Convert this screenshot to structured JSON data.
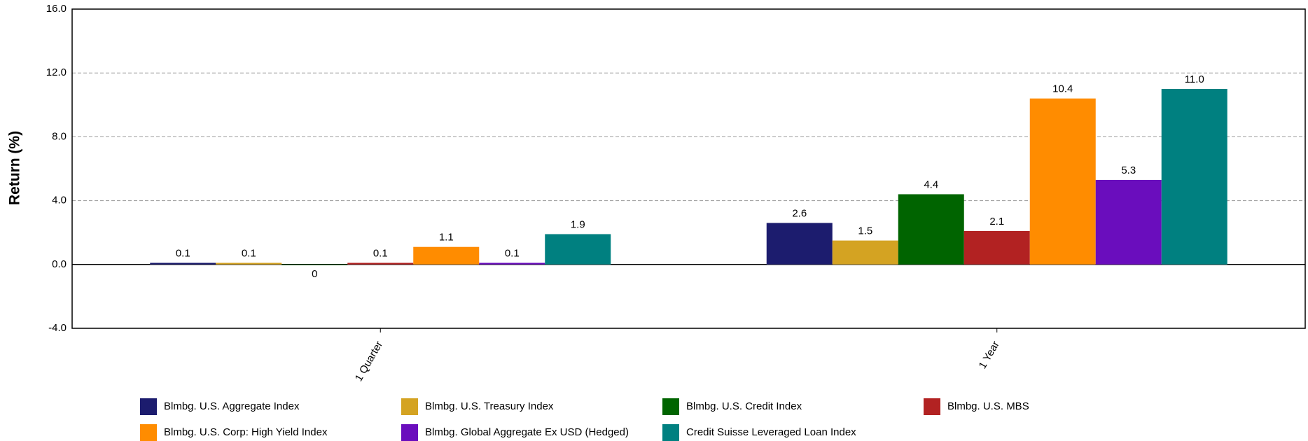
{
  "chart_data": {
    "type": "bar",
    "y_label": "Return (%)",
    "categories": [
      "1 Quarter",
      "1 Year"
    ],
    "series": [
      {
        "name": "Blmbg. U.S. Aggregate Index",
        "color": "#1c1c6e",
        "values": [
          0.1,
          2.6
        ]
      },
      {
        "name": "Blmbg. U.S. Treasury Index",
        "color": "#d4a322",
        "values": [
          0.1,
          1.5
        ]
      },
      {
        "name": "Blmbg. U.S. Credit Index",
        "color": "#006400",
        "values": [
          0.0,
          4.4
        ]
      },
      {
        "name": "Blmbg. U.S. MBS",
        "color": "#b22222",
        "values": [
          0.1,
          2.1
        ]
      },
      {
        "name": "Blmbg. U.S. Corp: High Yield Index",
        "color": "#ff8c00",
        "values": [
          1.1,
          10.4
        ]
      },
      {
        "name": "Blmbg. Global Aggregate Ex USD (Hedged)",
        "color": "#6a0dbd",
        "values": [
          0.1,
          5.3
        ]
      },
      {
        "name": "Credit Suisse Leveraged Loan Index",
        "color": "#008080",
        "values": [
          1.9,
          11.0
        ],
        "value_labels": [
          "1.9",
          "11.0"
        ]
      }
    ],
    "ylim": [
      -4,
      16
    ],
    "yticks": [
      {
        "value": -4,
        "label": "-4.0"
      },
      {
        "value": 0,
        "label": "0.0"
      },
      {
        "value": 4,
        "label": "4.0"
      },
      {
        "value": 8,
        "label": "8.0"
      },
      {
        "value": 12,
        "label": "12.0"
      },
      {
        "value": 16,
        "label": "16.0"
      }
    ],
    "grid": true
  }
}
